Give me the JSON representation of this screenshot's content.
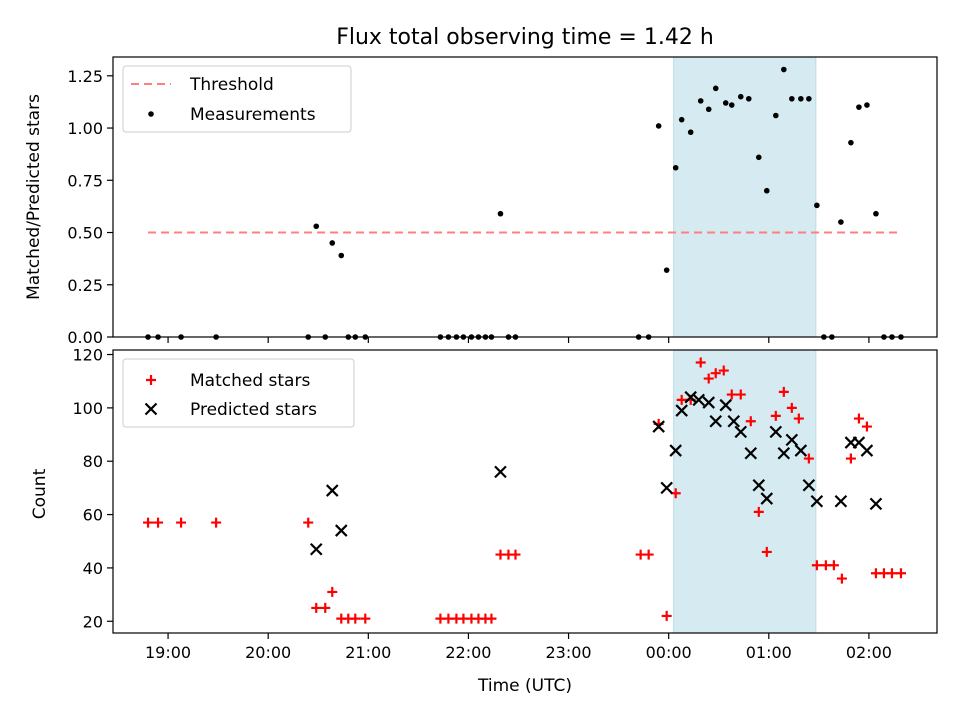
{
  "chart_data": [
    {
      "type": "scatter",
      "title": "Flux total observing time = 1.42 h",
      "ylabel": "Matched/Predicted stars",
      "xlabel": "",
      "ylim": [
        0,
        1.34
      ],
      "y_ticks": [
        "0.00",
        "0.25",
        "0.50",
        "0.75",
        "1.00",
        "1.25"
      ],
      "y_tick_values": [
        0,
        0.25,
        0.5,
        0.75,
        1.0,
        1.25
      ],
      "shaded_span_hours": [
        24.05,
        25.47
      ],
      "shade_color": "#d5ebf1",
      "legend": {
        "position": "top-left",
        "entries": [
          "Threshold",
          "Measurements"
        ]
      },
      "series": [
        {
          "name": "Threshold",
          "kind": "line",
          "color": "#ff7f7f",
          "points": [
            [
              18.8,
              0.5
            ],
            [
              26.33,
              0.5
            ]
          ]
        },
        {
          "name": "Measurements",
          "kind": "scatter",
          "color": "#000000",
          "points": [
            [
              18.8,
              0
            ],
            [
              18.9,
              0
            ],
            [
              19.13,
              0
            ],
            [
              19.48,
              0
            ],
            [
              20.4,
              0
            ],
            [
              20.48,
              0.53
            ],
            [
              20.57,
              0
            ],
            [
              20.64,
              0.45
            ],
            [
              20.73,
              0.39
            ],
            [
              20.8,
              0
            ],
            [
              20.87,
              0
            ],
            [
              20.97,
              0
            ],
            [
              21.72,
              0
            ],
            [
              21.8,
              0
            ],
            [
              21.88,
              0
            ],
            [
              21.95,
              0
            ],
            [
              22.03,
              0
            ],
            [
              22.1,
              0
            ],
            [
              22.17,
              0
            ],
            [
              22.23,
              0
            ],
            [
              22.32,
              0.59
            ],
            [
              22.4,
              0
            ],
            [
              22.47,
              0
            ],
            [
              23.7,
              0
            ],
            [
              23.8,
              0
            ],
            [
              23.9,
              1.01
            ],
            [
              23.98,
              0.32
            ],
            [
              24.07,
              0.81
            ],
            [
              24.13,
              1.04
            ],
            [
              24.22,
              0.98
            ],
            [
              24.32,
              1.13
            ],
            [
              24.4,
              1.09
            ],
            [
              24.47,
              1.19
            ],
            [
              24.57,
              1.12
            ],
            [
              24.63,
              1.11
            ],
            [
              24.72,
              1.15
            ],
            [
              24.8,
              1.14
            ],
            [
              24.9,
              0.86
            ],
            [
              24.98,
              0.7
            ],
            [
              25.07,
              1.06
            ],
            [
              25.15,
              1.28
            ],
            [
              25.23,
              1.14
            ],
            [
              25.32,
              1.14
            ],
            [
              25.4,
              1.14
            ],
            [
              25.48,
              0.63
            ],
            [
              25.55,
              0
            ],
            [
              25.63,
              0
            ],
            [
              25.72,
              0.55
            ],
            [
              25.82,
              0.93
            ],
            [
              25.9,
              1.1
            ],
            [
              25.98,
              1.11
            ],
            [
              26.07,
              0.59
            ],
            [
              26.15,
              0
            ],
            [
              26.23,
              0
            ],
            [
              26.32,
              0
            ]
          ]
        }
      ]
    },
    {
      "type": "scatter",
      "title": "",
      "ylabel": "Count",
      "xlabel": "Time (UTC)",
      "xlim_hours": [
        18.45,
        26.68
      ],
      "x_ticks": [
        "19:00",
        "20:00",
        "21:00",
        "22:00",
        "23:00",
        "00:00",
        "01:00",
        "02:00"
      ],
      "x_tick_hours": [
        19,
        20,
        21,
        22,
        23,
        24,
        25,
        26
      ],
      "ylim": [
        15.6,
        121.7
      ],
      "y_ticks": [
        "20",
        "40",
        "60",
        "80",
        "100",
        "120"
      ],
      "y_tick_values": [
        20,
        40,
        60,
        80,
        100,
        120
      ],
      "legend": {
        "position": "top-left",
        "entries": [
          "Matched stars",
          "Predicted stars"
        ]
      },
      "series": [
        {
          "name": "Matched stars",
          "marker": "+",
          "color": "#ff0000",
          "points": [
            [
              18.8,
              57
            ],
            [
              18.9,
              57
            ],
            [
              19.13,
              57
            ],
            [
              19.48,
              57
            ],
            [
              20.4,
              57
            ],
            [
              20.48,
              25
            ],
            [
              20.57,
              25
            ],
            [
              20.64,
              31
            ],
            [
              20.73,
              21
            ],
            [
              20.8,
              21
            ],
            [
              20.87,
              21
            ],
            [
              20.97,
              21
            ],
            [
              21.72,
              21
            ],
            [
              21.8,
              21
            ],
            [
              21.88,
              21
            ],
            [
              21.95,
              21
            ],
            [
              22.03,
              21
            ],
            [
              22.1,
              21
            ],
            [
              22.17,
              21
            ],
            [
              22.23,
              21
            ],
            [
              22.32,
              45
            ],
            [
              22.4,
              45
            ],
            [
              22.47,
              45
            ],
            [
              23.72,
              45
            ],
            [
              23.8,
              45
            ],
            [
              23.9,
              94
            ],
            [
              23.98,
              22
            ],
            [
              24.07,
              68
            ],
            [
              24.13,
              103
            ],
            [
              24.22,
              103
            ],
            [
              24.32,
              117
            ],
            [
              24.4,
              111
            ],
            [
              24.47,
              113
            ],
            [
              24.55,
              114
            ],
            [
              24.63,
              105
            ],
            [
              24.72,
              105
            ],
            [
              24.82,
              95
            ],
            [
              24.9,
              61
            ],
            [
              24.98,
              46
            ],
            [
              25.07,
              97
            ],
            [
              25.15,
              106
            ],
            [
              25.23,
              100
            ],
            [
              25.3,
              96
            ],
            [
              25.4,
              81
            ],
            [
              25.48,
              41
            ],
            [
              25.57,
              41
            ],
            [
              25.65,
              41
            ],
            [
              25.73,
              36
            ],
            [
              25.82,
              81
            ],
            [
              25.9,
              96
            ],
            [
              25.98,
              93
            ],
            [
              26.07,
              38
            ],
            [
              26.15,
              38
            ],
            [
              26.23,
              38
            ],
            [
              26.32,
              38
            ]
          ]
        },
        {
          "name": "Predicted stars",
          "marker": "x",
          "color": "#000000",
          "points": [
            [
              20.48,
              47
            ],
            [
              20.64,
              69
            ],
            [
              20.73,
              54
            ],
            [
              22.32,
              76
            ],
            [
              23.9,
              93
            ],
            [
              23.98,
              70
            ],
            [
              24.07,
              84
            ],
            [
              24.13,
              99
            ],
            [
              24.22,
              104
            ],
            [
              24.3,
              103
            ],
            [
              24.4,
              102
            ],
            [
              24.47,
              95
            ],
            [
              24.57,
              101
            ],
            [
              24.65,
              95
            ],
            [
              24.72,
              91
            ],
            [
              24.82,
              83
            ],
            [
              24.9,
              71
            ],
            [
              24.98,
              66
            ],
            [
              25.07,
              91
            ],
            [
              25.15,
              83
            ],
            [
              25.23,
              88
            ],
            [
              25.32,
              84
            ],
            [
              25.4,
              71
            ],
            [
              25.48,
              65
            ],
            [
              25.72,
              65
            ],
            [
              25.82,
              87
            ],
            [
              25.9,
              87
            ],
            [
              25.98,
              84
            ],
            [
              26.07,
              64
            ]
          ]
        }
      ]
    }
  ]
}
